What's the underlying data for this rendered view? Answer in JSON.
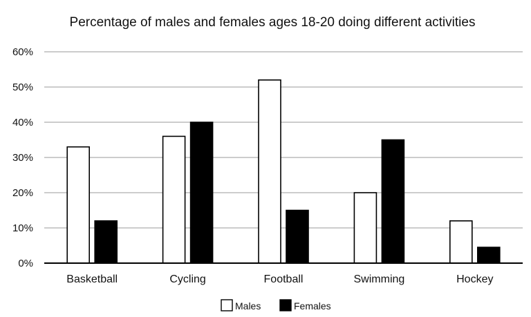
{
  "chart_data": {
    "type": "bar",
    "title": "Percentage of males and females ages 18-20 doing different activities",
    "xlabel": "",
    "ylabel": "",
    "categories": [
      "Basketball",
      "Cycling",
      "Football",
      "Swimming",
      "Hockey"
    ],
    "series": [
      {
        "name": "Males",
        "values": [
          33,
          36,
          52,
          20,
          12
        ],
        "color": "#ffffff"
      },
      {
        "name": "Females",
        "values": [
          12,
          40,
          15,
          35,
          4.5
        ],
        "color": "#000000"
      }
    ],
    "ylim": [
      0,
      60
    ],
    "yticks": [
      0,
      10,
      20,
      30,
      40,
      50,
      60
    ],
    "ytick_labels": [
      "0%",
      "10%",
      "20%",
      "30%",
      "40%",
      "50%",
      "60%"
    ],
    "grid": true,
    "legend": "bottom"
  }
}
